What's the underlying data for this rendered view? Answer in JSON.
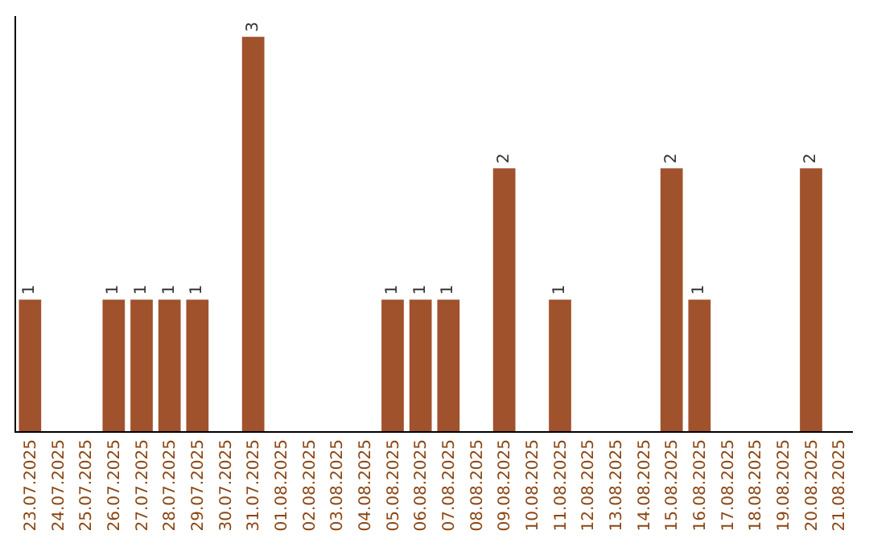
{
  "chart_data": {
    "type": "bar",
    "categories": [
      "23.07.2025",
      "24.07.2025",
      "25.07.2025",
      "26.07.2025",
      "27.07.2025",
      "28.07.2025",
      "29.07.2025",
      "30.07.2025",
      "31.07.2025",
      "01.08.2025",
      "02.08.2025",
      "03.08.2025",
      "04.08.2025",
      "05.08.2025",
      "06.08.2025",
      "07.08.2025",
      "08.08.2025",
      "09.08.2025",
      "10.08.2025",
      "11.08.2025",
      "12.08.2025",
      "13.08.2025",
      "14.08.2025",
      "15.08.2025",
      "16.08.2025",
      "17.08.2025",
      "18.08.2025",
      "19.08.2025",
      "20.08.2025",
      "21.08.2025"
    ],
    "values": [
      1,
      0,
      0,
      1,
      1,
      1,
      1,
      0,
      3,
      0,
      0,
      0,
      0,
      1,
      1,
      1,
      0,
      2,
      0,
      1,
      0,
      0,
      0,
      2,
      1,
      0,
      0,
      0,
      2,
      0
    ],
    "value_labels": [
      "1",
      null,
      null,
      "1",
      "1",
      "1",
      "1",
      null,
      "3",
      null,
      null,
      null,
      null,
      "1",
      "1",
      "1",
      null,
      "2",
      null,
      "1",
      null,
      null,
      null,
      "2",
      "1",
      null,
      null,
      null,
      "2",
      null
    ],
    "color": "#a0522d",
    "tick_labels": "x",
    "grid": false
  }
}
